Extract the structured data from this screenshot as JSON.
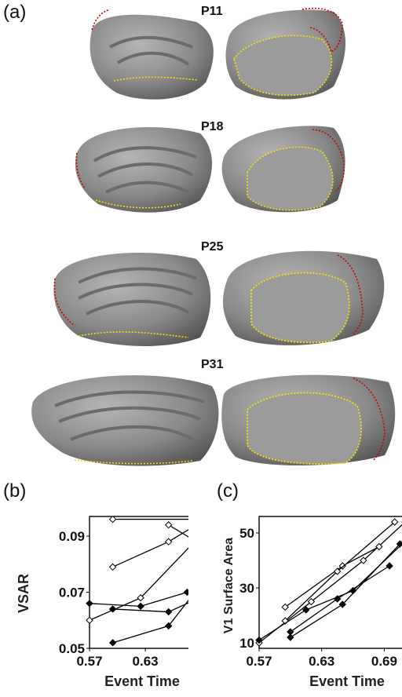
{
  "panel_labels": {
    "a": "(a)",
    "b": "(b)",
    "c": "(c)"
  },
  "brain_rows": [
    {
      "label": "P11"
    },
    {
      "label": "P18"
    },
    {
      "label": "P25"
    },
    {
      "label": "P31"
    }
  ],
  "colors": {
    "surface": "#8a8a8a",
    "surface_dark": "#5a5a5a",
    "yellow_border": "#f2e400",
    "red_border": "#cc0000",
    "axis": "#000000"
  },
  "chart_data": [
    {
      "type": "line",
      "panel": "(b)",
      "xlabel": "Event Time",
      "ylabel": "VSAR",
      "xlim": [
        0.57,
        0.7
      ],
      "ylim": [
        0.05,
        0.097
      ],
      "xticks": [
        "0.57",
        "0.63",
        "0.69"
      ],
      "yticks": [
        "0.05",
        "0.07",
        "0.09"
      ],
      "series": [
        {
          "marker": "open",
          "points": [
            [
              0.595,
              0.096
            ],
            [
              0.695,
              0.096
            ]
          ]
        },
        {
          "marker": "open",
          "points": [
            [
              0.595,
              0.079
            ],
            [
              0.655,
              0.088
            ],
            [
              0.695,
              0.096
            ]
          ]
        },
        {
          "marker": "open",
          "points": [
            [
              0.57,
              0.06
            ],
            [
              0.625,
              0.068
            ],
            [
              0.68,
              0.087
            ]
          ]
        },
        {
          "marker": "open",
          "points": [
            [
              0.655,
              0.094
            ],
            [
              0.695,
              0.086
            ]
          ]
        },
        {
          "marker": "filled",
          "points": [
            [
              0.57,
              0.066
            ],
            [
              0.625,
              0.065
            ],
            [
              0.675,
              0.07
            ]
          ]
        },
        {
          "marker": "filled",
          "points": [
            [
              0.595,
              0.064
            ],
            [
              0.655,
              0.063
            ],
            [
              0.695,
              0.069
            ]
          ]
        },
        {
          "marker": "filled",
          "points": [
            [
              0.595,
              0.052
            ],
            [
              0.655,
              0.058
            ],
            [
              0.695,
              0.075
            ]
          ]
        }
      ]
    },
    {
      "type": "line",
      "panel": "(c)",
      "xlabel": "Event Time",
      "ylabel": "V1 Surface Area",
      "xlim": [
        0.57,
        0.71
      ],
      "ylim": [
        8,
        56
      ],
      "xticks": [
        "0.57",
        "0.63",
        "0.69"
      ],
      "yticks": [
        "10",
        "30",
        "50"
      ],
      "series": [
        {
          "marker": "open",
          "points": [
            [
              0.57,
              10
            ],
            [
              0.62,
              25
            ],
            [
              0.67,
              40
            ],
            [
              0.71,
              54
            ]
          ]
        },
        {
          "marker": "open",
          "points": [
            [
              0.595,
              23
            ],
            [
              0.65,
              38
            ],
            [
              0.685,
              45
            ]
          ]
        },
        {
          "marker": "open",
          "points": [
            [
              0.595,
              18
            ],
            [
              0.645,
              36
            ],
            [
              0.7,
              54
            ]
          ]
        },
        {
          "marker": "filled",
          "points": [
            [
              0.57,
              11
            ],
            [
              0.615,
              22
            ],
            [
              0.66,
              29
            ],
            [
              0.71,
              47
            ]
          ]
        },
        {
          "marker": "filled",
          "points": [
            [
              0.6,
              14
            ],
            [
              0.645,
              26
            ],
            [
              0.695,
              38
            ]
          ]
        },
        {
          "marker": "filled",
          "points": [
            [
              0.6,
              12
            ],
            [
              0.65,
              24
            ],
            [
              0.705,
              46
            ]
          ]
        }
      ]
    }
  ]
}
